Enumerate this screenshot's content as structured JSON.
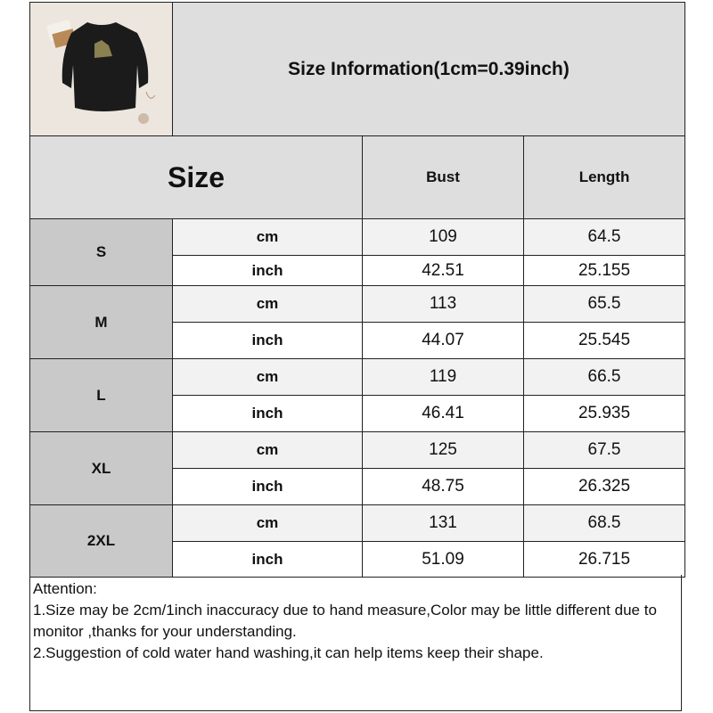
{
  "title": "Size Information(1cm=0.39inch)",
  "product_image": "black-sweatshirt-photo",
  "headers": {
    "size": "Size",
    "bust": "Bust",
    "length": "Length"
  },
  "units": {
    "cm": "cm",
    "inch": "inch"
  },
  "rows": [
    {
      "size": "S",
      "cm": {
        "bust": "109",
        "length": "64.5"
      },
      "inch": {
        "bust": "42.51",
        "length": "25.155"
      }
    },
    {
      "size": "M",
      "cm": {
        "bust": "113",
        "length": "65.5"
      },
      "inch": {
        "bust": "44.07",
        "length": "25.545"
      }
    },
    {
      "size": "L",
      "cm": {
        "bust": "119",
        "length": "66.5"
      },
      "inch": {
        "bust": "46.41",
        "length": "25.935"
      }
    },
    {
      "size": "XL",
      "cm": {
        "bust": "125",
        "length": "67.5"
      },
      "inch": {
        "bust": "48.75",
        "length": "26.325"
      }
    },
    {
      "size": "2XL",
      "cm": {
        "bust": "131",
        "length": "68.5"
      },
      "inch": {
        "bust": "51.09",
        "length": "26.715"
      }
    }
  ],
  "attention": {
    "heading": "Attention:",
    "note1": "1.Size may be 2cm/1inch inaccuracy due to hand measure,Color may be little different due to monitor ,thanks for your understanding.",
    "note2": "2.Suggestion of cold water hand washing,it can help items keep their shape."
  }
}
